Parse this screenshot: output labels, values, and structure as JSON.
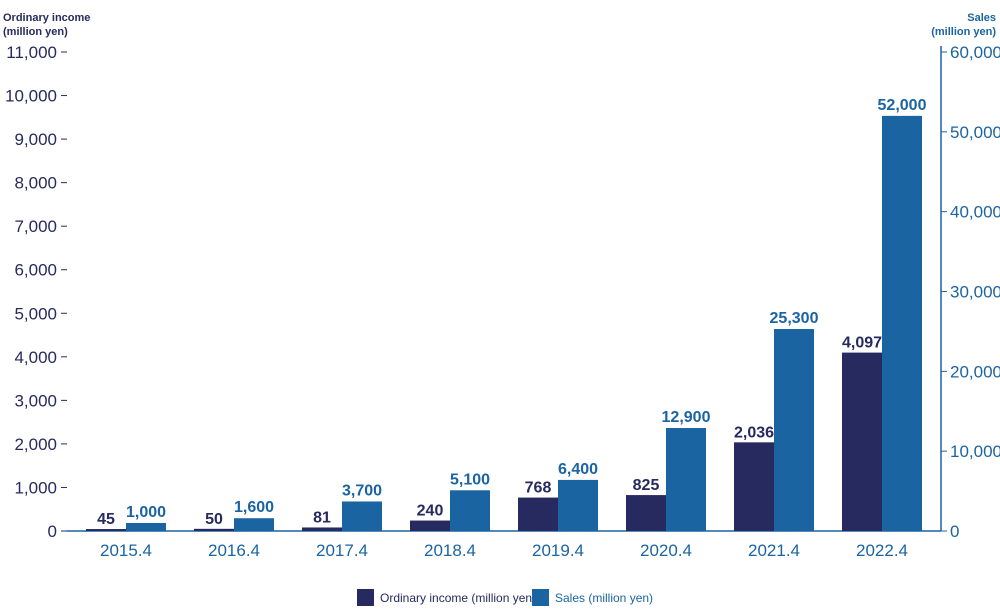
{
  "chart_data": {
    "type": "bar",
    "categories": [
      "2015.4",
      "2016.4",
      "2017.4",
      "2018.4",
      "2019.4",
      "2020.4",
      "2021.4",
      "2022.4"
    ],
    "series": [
      {
        "name": "Ordinary income (million yen)",
        "axis": "left",
        "color": "#262a5e",
        "values": [
          45,
          50,
          81,
          240,
          768,
          825,
          2036,
          4097
        ],
        "labels": [
          "45",
          "50",
          "81",
          "240",
          "768",
          "825",
          "2,036",
          "4,097"
        ]
      },
      {
        "name": "Sales (million yen)",
        "axis": "right",
        "color": "#1b64a2",
        "values": [
          1000,
          1600,
          3700,
          5100,
          6400,
          12900,
          25300,
          52000
        ],
        "labels": [
          "1,000",
          "1,600",
          "3,700",
          "5,100",
          "6,400",
          "12,900",
          "25,300",
          "52,000"
        ]
      }
    ],
    "left_axis": {
      "title_lines": [
        "Ordinary income",
        "(million yen)"
      ],
      "ylim": [
        0,
        11000
      ],
      "ticks": [
        0,
        1000,
        2000,
        3000,
        4000,
        5000,
        6000,
        7000,
        8000,
        9000,
        10000,
        11000
      ],
      "tick_labels": [
        "0",
        "1,000",
        "2,000",
        "3,000",
        "4,000",
        "5,000",
        "6,000",
        "7,000",
        "8,000",
        "9,000",
        "10,000",
        "11,000"
      ],
      "color": "#262a5e"
    },
    "right_axis": {
      "title_lines": [
        "Sales",
        "(million yen)"
      ],
      "ylim": [
        0,
        60000
      ],
      "ticks": [
        0,
        10000,
        20000,
        30000,
        40000,
        50000,
        60000
      ],
      "tick_labels": [
        "0",
        "10,000",
        "20,000",
        "30,000",
        "40,000",
        "50,000",
        "60,000"
      ],
      "color": "#1b64a2"
    },
    "category_label_color": "#1b64a2",
    "grid": false,
    "legend_position": "bottom-center"
  }
}
